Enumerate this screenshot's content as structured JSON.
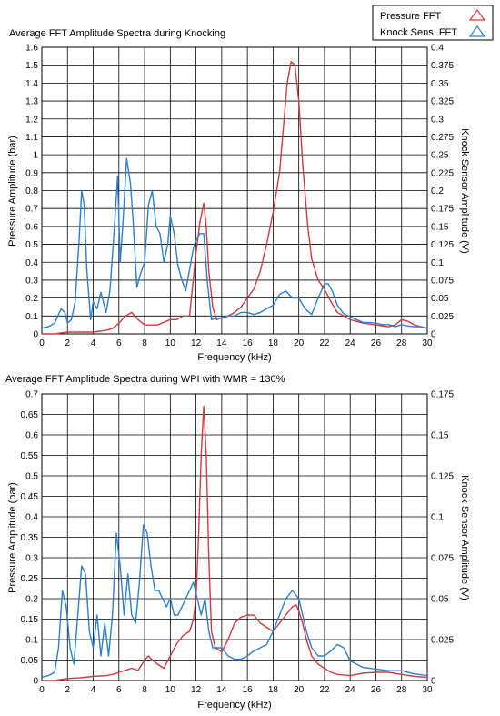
{
  "legend": {
    "items": [
      {
        "label": "Pressure FFT",
        "color": "#d9363e"
      },
      {
        "label": "Knock Sens. FFT",
        "color": "#2a7fd4"
      }
    ]
  },
  "chart_data": [
    {
      "type": "line",
      "title": "Average FFT Amplitude Spectra during Knocking",
      "xlabel": "Frequency (kHz)",
      "ylabel": "Pressure Amplitude (bar)",
      "y2label": "Knock Sensor Amplitude (V)",
      "xlim": [
        0,
        30
      ],
      "ylim": [
        0,
        1.6
      ],
      "y2lim": [
        0,
        0.4
      ],
      "xticks": [
        "0",
        "2",
        "4",
        "6",
        "8",
        "10",
        "12",
        "14",
        "16",
        "18",
        "20",
        "22",
        "24",
        "26",
        "28",
        "30"
      ],
      "yticks": [
        "0",
        "0.1",
        "0.2",
        "0.3",
        "0.4",
        "0.5",
        "0.6",
        "0.7",
        "0.8",
        "0.9",
        "1",
        "1.1",
        "1.2",
        "1.3",
        "1.4",
        "1.5",
        "1.6"
      ],
      "y2ticks": [
        "0",
        "0.025",
        "0.05",
        "0.075",
        "0.1",
        "0.125",
        "0.15",
        "0.175",
        "0.2",
        "0.225",
        "0.25",
        "0.275",
        "0.3",
        "0.325",
        "0.35",
        "0.375",
        "0.4"
      ],
      "grid": true,
      "series": [
        {
          "name": "Pressure FFT",
          "axis": "left",
          "color": "#d9363e",
          "x": [
            0,
            1,
            2,
            3,
            4,
            5,
            5.5,
            6,
            6.5,
            7,
            7.5,
            8,
            9,
            10,
            10.5,
            11,
            11.5,
            12,
            12.3,
            12.6,
            12.8,
            13,
            13.3,
            13.6,
            14,
            14.5,
            15,
            15.5,
            16,
            16.5,
            17,
            17.5,
            18,
            18.5,
            18.8,
            19.1,
            19.4,
            19.7,
            20,
            20.3,
            20.7,
            21,
            21.5,
            22,
            22.5,
            23,
            24,
            25,
            26,
            27,
            27.5,
            28,
            28.5,
            29,
            30
          ],
          "y": [
            0,
            0,
            0.01,
            0.01,
            0.01,
            0.02,
            0.03,
            0.06,
            0.1,
            0.12,
            0.08,
            0.05,
            0.05,
            0.08,
            0.08,
            0.1,
            0.1,
            0.45,
            0.62,
            0.73,
            0.6,
            0.35,
            0.15,
            0.08,
            0.09,
            0.1,
            0.12,
            0.15,
            0.2,
            0.25,
            0.35,
            0.5,
            0.68,
            0.9,
            1.15,
            1.4,
            1.52,
            1.5,
            1.3,
            0.95,
            0.6,
            0.42,
            0.3,
            0.25,
            0.18,
            0.12,
            0.08,
            0.06,
            0.05,
            0.04,
            0.05,
            0.08,
            0.07,
            0.05,
            0.03
          ]
        },
        {
          "name": "Knock Sens. FFT",
          "axis": "right",
          "color": "#2a7fd4",
          "x": [
            0,
            0.5,
            1,
            1.5,
            1.8,
            2,
            2.3,
            2.6,
            2.9,
            3.1,
            3.3,
            3.5,
            3.8,
            4,
            4.3,
            4.6,
            5,
            5.3,
            5.6,
            5.9,
            6.1,
            6.3,
            6.6,
            6.9,
            7.1,
            7.4,
            7.7,
            8,
            8.3,
            8.6,
            8.9,
            9.2,
            9.5,
            9.8,
            10,
            10.3,
            10.6,
            10.9,
            11.2,
            11.5,
            11.8,
            12,
            12.3,
            12.6,
            12.9,
            13.2,
            13.6,
            14,
            14.5,
            15,
            15.5,
            16,
            16.5,
            17,
            17.5,
            18,
            18.5,
            19,
            19.5,
            20,
            20.5,
            21,
            21.5,
            22,
            22.3,
            22.6,
            23,
            23.5,
            24,
            24.5,
            25,
            25.5,
            26,
            26.5,
            27,
            27.5,
            28,
            28.5,
            29,
            29.5,
            30
          ],
          "y": [
            0.008,
            0.01,
            0.015,
            0.035,
            0.03,
            0.015,
            0.02,
            0.045,
            0.13,
            0.2,
            0.18,
            0.09,
            0.02,
            0.045,
            0.035,
            0.058,
            0.03,
            0.06,
            0.135,
            0.22,
            0.1,
            0.15,
            0.245,
            0.21,
            0.16,
            0.065,
            0.085,
            0.1,
            0.18,
            0.2,
            0.15,
            0.14,
            0.1,
            0.125,
            0.165,
            0.14,
            0.095,
            0.075,
            0.06,
            0.09,
            0.12,
            0.13,
            0.14,
            0.14,
            0.07,
            0.02,
            0.022,
            0.022,
            0.025,
            0.025,
            0.03,
            0.03,
            0.027,
            0.03,
            0.035,
            0.04,
            0.055,
            0.06,
            0.05,
            0.05,
            0.035,
            0.027,
            0.05,
            0.07,
            0.07,
            0.06,
            0.04,
            0.028,
            0.024,
            0.02,
            0.016,
            0.016,
            0.015,
            0.013,
            0.013,
            0.01,
            0.013,
            0.011,
            0.01,
            0.01,
            0.008
          ]
        }
      ]
    },
    {
      "type": "line",
      "title": "Average FFT Amplitude Spectra during WPI with WMR = 130%",
      "xlabel": "Frequency (kHz)",
      "ylabel": "Pressure Amplitude (bar)",
      "y2label": "Knock Sensor Amplitude (V)",
      "xlim": [
        0,
        30
      ],
      "ylim": [
        0,
        0.7
      ],
      "y2lim": [
        0,
        0.175
      ],
      "xticks": [
        "0",
        "2",
        "4",
        "6",
        "8",
        "10",
        "12",
        "14",
        "16",
        "18",
        "20",
        "22",
        "24",
        "26",
        "28",
        "30"
      ],
      "yticks": [
        "0",
        "0.05",
        "0.1",
        "0.15",
        "0.2",
        "0.25",
        "0.3",
        "0.35",
        "0.4",
        "0.45",
        "0.5",
        "0.55",
        "0.6",
        "0.65",
        "0.7"
      ],
      "y2ticks": [
        "0",
        "0.025",
        "0.05",
        "0.075",
        "0.1",
        "0.125",
        "0.15",
        "0.175"
      ],
      "grid": true,
      "series": [
        {
          "name": "Pressure FFT",
          "axis": "left",
          "color": "#d9363e",
          "x": [
            0,
            1,
            2,
            3,
            4,
            5,
            5.5,
            6,
            6.5,
            7,
            7.5,
            8,
            8.3,
            8.6,
            9,
            9.5,
            10,
            10.5,
            11,
            11.5,
            11.8,
            12,
            12.2,
            12.4,
            12.6,
            12.8,
            13,
            13.2,
            13.5,
            14,
            14.5,
            15,
            15.5,
            16,
            16.5,
            17,
            17.5,
            18,
            18.5,
            19,
            19.5,
            19.8,
            20,
            20.3,
            20.6,
            21,
            21.5,
            22,
            22.5,
            23,
            24,
            25,
            26,
            27,
            28,
            29,
            30
          ],
          "y": [
            0,
            0,
            0.005,
            0.007,
            0.01,
            0.012,
            0.015,
            0.02,
            0.025,
            0.03,
            0.025,
            0.05,
            0.06,
            0.05,
            0.04,
            0.03,
            0.06,
            0.09,
            0.11,
            0.12,
            0.15,
            0.2,
            0.35,
            0.55,
            0.67,
            0.55,
            0.3,
            0.12,
            0.08,
            0.07,
            0.1,
            0.14,
            0.155,
            0.16,
            0.16,
            0.14,
            0.13,
            0.12,
            0.14,
            0.16,
            0.18,
            0.185,
            0.17,
            0.14,
            0.1,
            0.06,
            0.04,
            0.03,
            0.02,
            0.015,
            0.012,
            0.018,
            0.02,
            0.02,
            0.015,
            0.01,
            0.008
          ]
        },
        {
          "name": "Knock Sens. FFT",
          "axis": "right",
          "color": "#2a7fd4",
          "x": [
            0,
            0.5,
            1,
            1.3,
            1.6,
            1.9,
            2.2,
            2.5,
            2.8,
            3.1,
            3.4,
            3.7,
            4,
            4.3,
            4.6,
            4.9,
            5.2,
            5.5,
            5.8,
            6.1,
            6.4,
            6.7,
            7,
            7.3,
            7.6,
            7.9,
            8.2,
            8.5,
            8.8,
            9.1,
            9.4,
            9.7,
            10,
            10.3,
            10.6,
            10.9,
            11.2,
            11.5,
            11.8,
            12.1,
            12.4,
            12.7,
            13,
            13.3,
            13.6,
            14,
            14.5,
            15,
            15.5,
            16,
            16.5,
            17,
            17.5,
            18,
            18.5,
            19,
            19.5,
            20,
            20.3,
            20.6,
            21,
            21.5,
            22,
            22.5,
            23,
            23.5,
            24,
            25,
            26,
            27,
            28,
            29,
            30
          ],
          "y": [
            0.002,
            0.003,
            0.005,
            0.02,
            0.055,
            0.045,
            0.02,
            0.01,
            0.04,
            0.07,
            0.065,
            0.03,
            0.02,
            0.04,
            0.015,
            0.035,
            0.015,
            0.04,
            0.09,
            0.07,
            0.04,
            0.065,
            0.04,
            0.035,
            0.06,
            0.095,
            0.09,
            0.07,
            0.055,
            0.055,
            0.05,
            0.045,
            0.05,
            0.04,
            0.04,
            0.045,
            0.05,
            0.055,
            0.06,
            0.05,
            0.04,
            0.05,
            0.03,
            0.02,
            0.02,
            0.02,
            0.015,
            0.013,
            0.013,
            0.015,
            0.018,
            0.02,
            0.022,
            0.03,
            0.04,
            0.05,
            0.055,
            0.05,
            0.04,
            0.03,
            0.02,
            0.015,
            0.015,
            0.018,
            0.022,
            0.02,
            0.012,
            0.008,
            0.007,
            0.006,
            0.006,
            0.004,
            0.003
          ]
        }
      ]
    }
  ]
}
